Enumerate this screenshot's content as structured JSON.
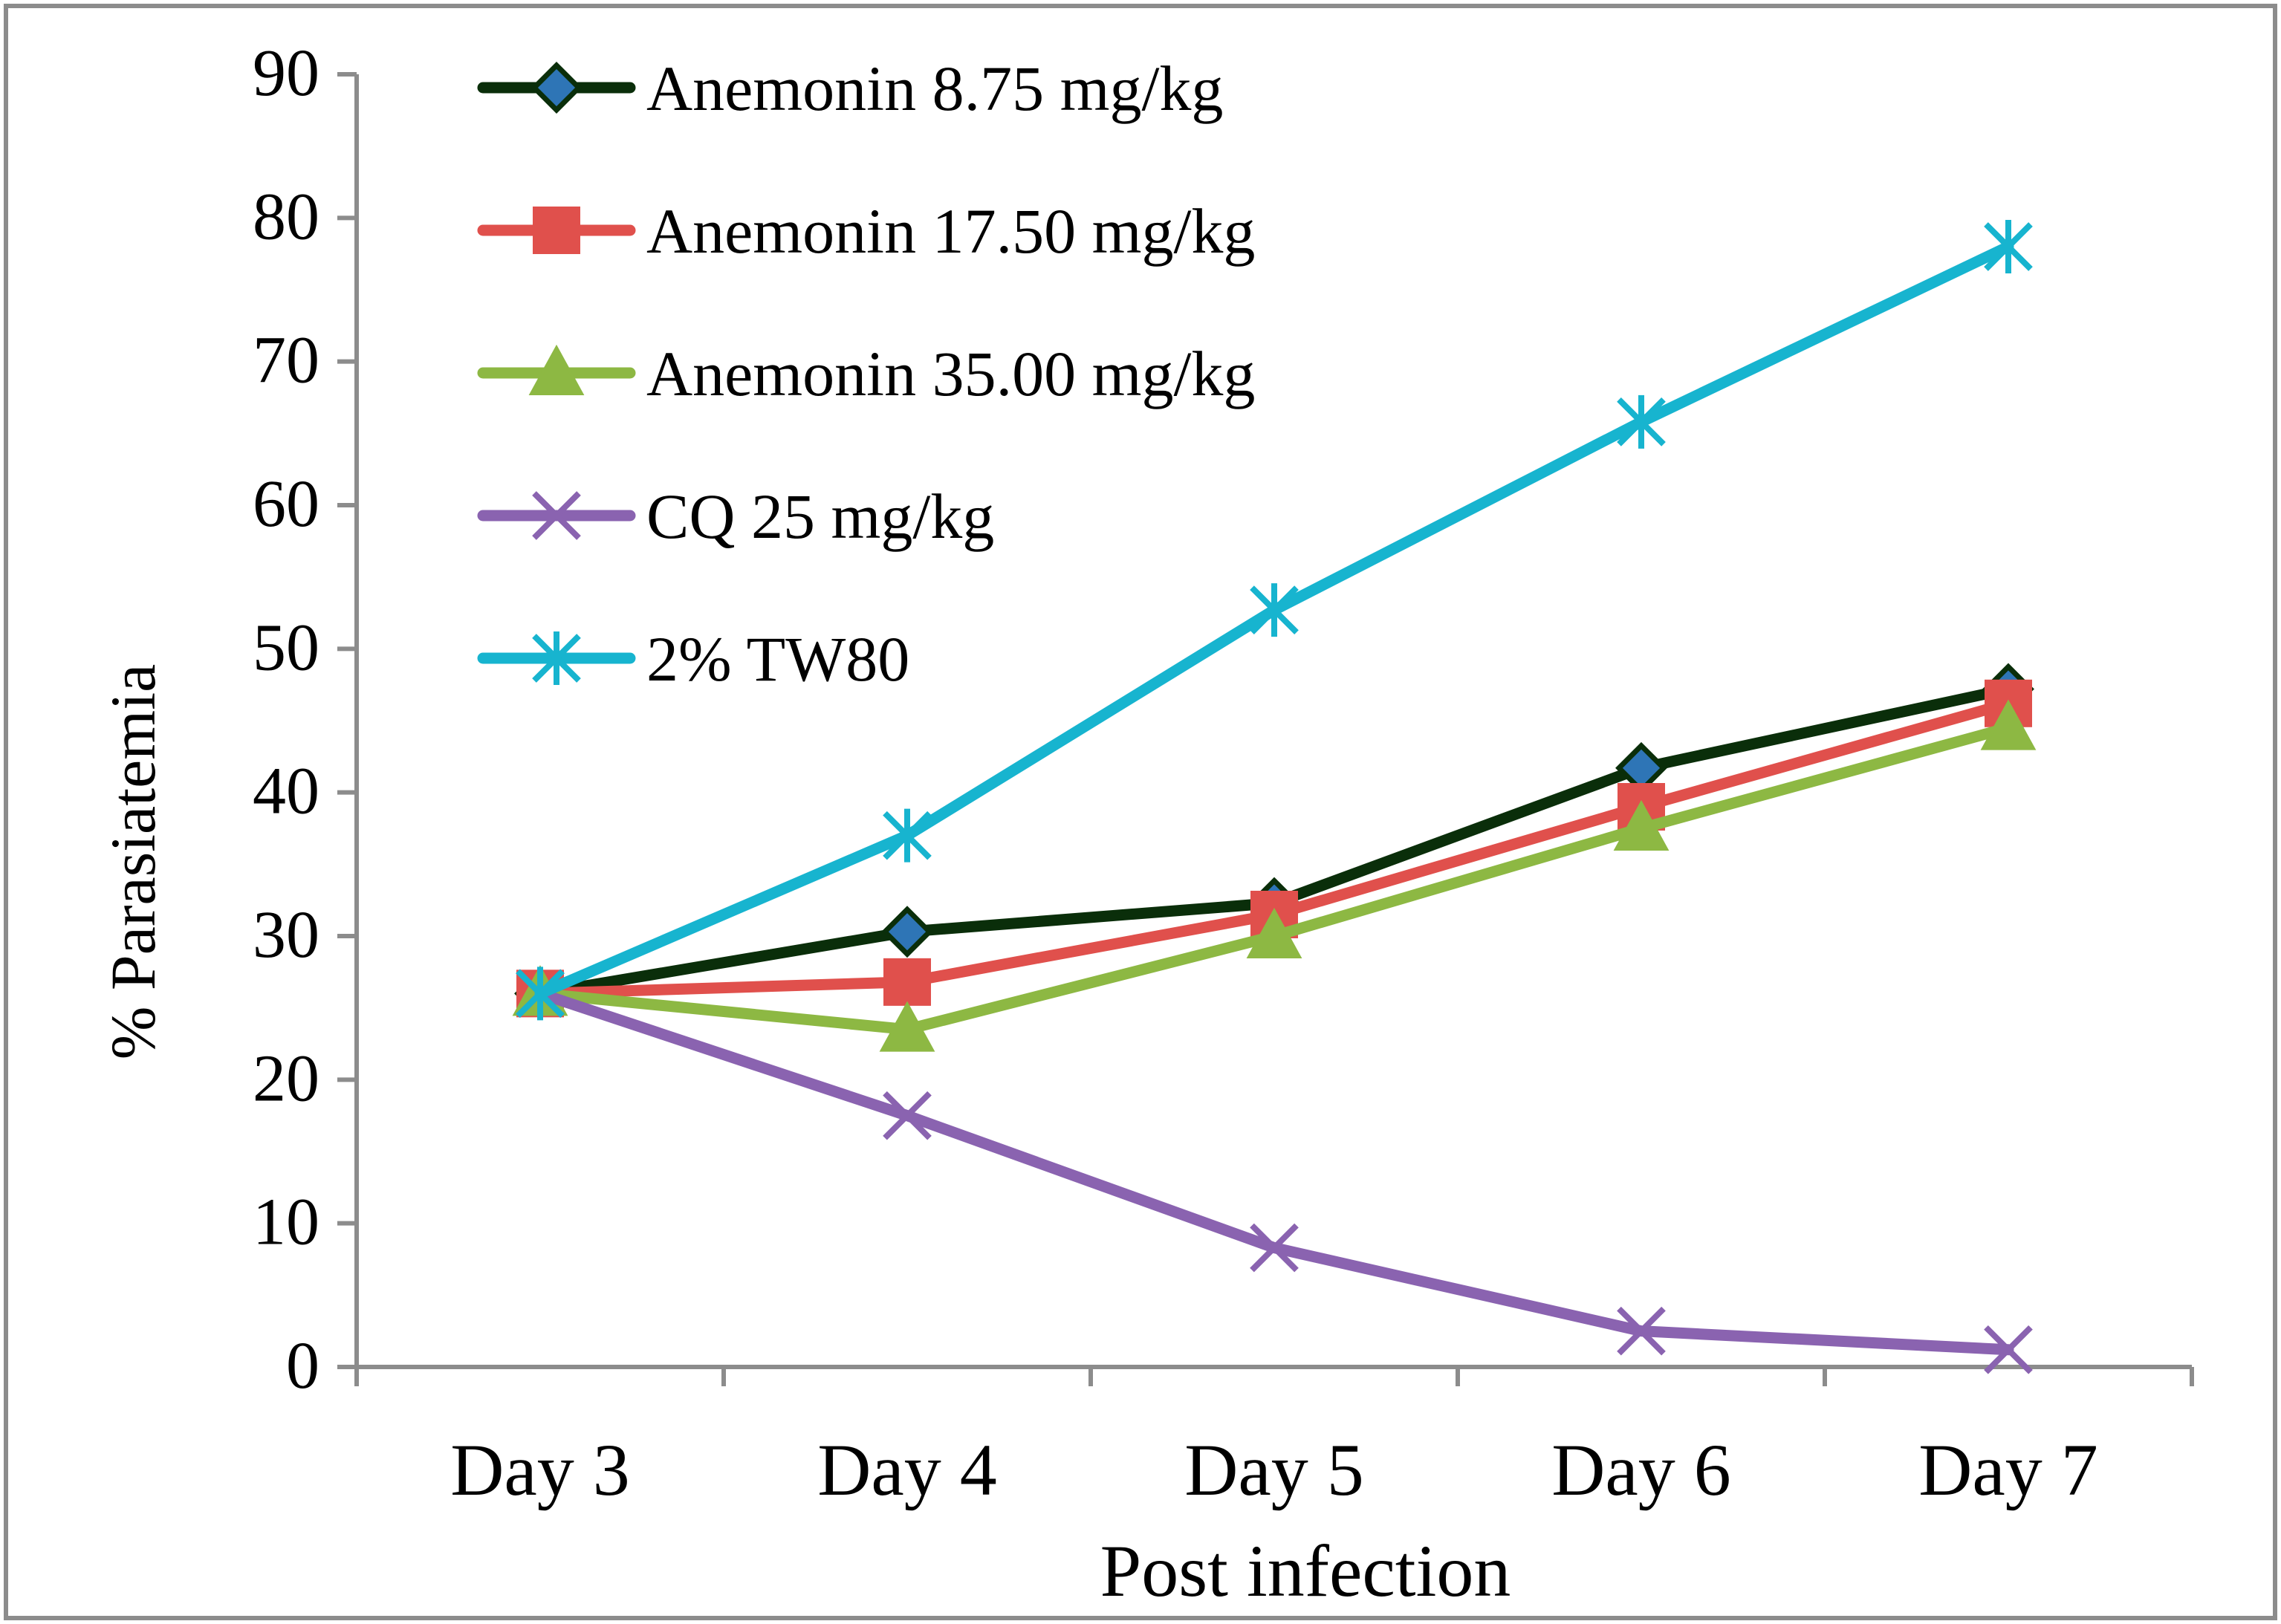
{
  "chart_data": {
    "type": "line",
    "title": "",
    "xlabel": "Post infection",
    "ylabel": "% Parasiatemia",
    "categories": [
      "Day 3",
      "Day 4",
      "Day 5",
      "Day 6",
      "Day 7"
    ],
    "ylim": [
      0,
      90
    ],
    "yticks": [
      0,
      10,
      20,
      30,
      40,
      50,
      60,
      70,
      80,
      90
    ],
    "ytick_labels": [
      "0",
      "10",
      "20",
      "30",
      "40",
      "50",
      "60",
      "70",
      "80",
      "90"
    ],
    "grid": false,
    "legend_position": "top-left",
    "series": [
      {
        "name": "Anemonin 8.75 mg/kg",
        "color": "#0a2e0a",
        "marker": "diamond",
        "marker_fill": "#2e75b6",
        "values": [
          26.0,
          30.3,
          32.3,
          41.7,
          47.2
        ]
      },
      {
        "name": "Anemonin 17.50 mg/kg",
        "color": "#e0504c",
        "marker": "square",
        "marker_fill": "#e0504c",
        "values": [
          26.0,
          26.8,
          31.5,
          39.0,
          46.2
        ]
      },
      {
        "name": "Anemonin 35.00 mg/kg",
        "color": "#8db843",
        "marker": "triangle",
        "marker_fill": "#8db843",
        "values": [
          26.0,
          23.5,
          30.0,
          37.5,
          44.5
        ]
      },
      {
        "name": "CQ 25 mg/kg",
        "color": "#8a63b0",
        "marker": "x",
        "marker_fill": "#8a63b0",
        "values": [
          26.0,
          17.5,
          8.3,
          2.5,
          1.2
        ]
      },
      {
        "name": "2% TW80",
        "color": "#17b4cf",
        "marker": "star",
        "marker_fill": "#17b4cf",
        "values": [
          26.0,
          37.0,
          52.7,
          65.8,
          78.0
        ]
      }
    ]
  }
}
